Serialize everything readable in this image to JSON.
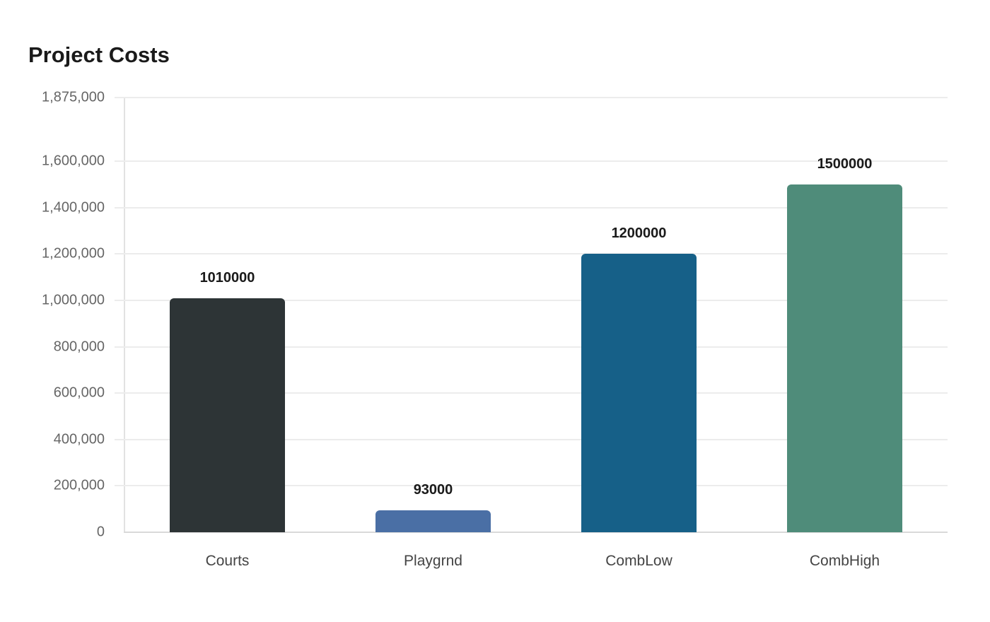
{
  "chart_data": {
    "type": "bar",
    "title": "Project Costs",
    "xlabel": "",
    "ylabel": "",
    "categories": [
      "Courts",
      "Playgrnd",
      "CombLow",
      "CombHigh"
    ],
    "values": [
      1010000,
      93000,
      1200000,
      1500000
    ],
    "value_labels": [
      "1010000",
      "93000",
      "1200000",
      "1500000"
    ],
    "colors": [
      "#2d3436",
      "#4a6fa5",
      "#166088",
      "#4f8c7a"
    ],
    "ylim": [
      0,
      1875000
    ],
    "yticks": [
      0,
      200000,
      400000,
      600000,
      800000,
      1000000,
      1200000,
      1400000,
      1600000,
      1875000
    ],
    "ytick_labels": [
      "0",
      "200,000",
      "400,000",
      "600,000",
      "800,000",
      "1,000,000",
      "1,200,000",
      "1,400,000",
      "1,600,000",
      "1,875,000"
    ],
    "grid": true,
    "legend": null
  }
}
